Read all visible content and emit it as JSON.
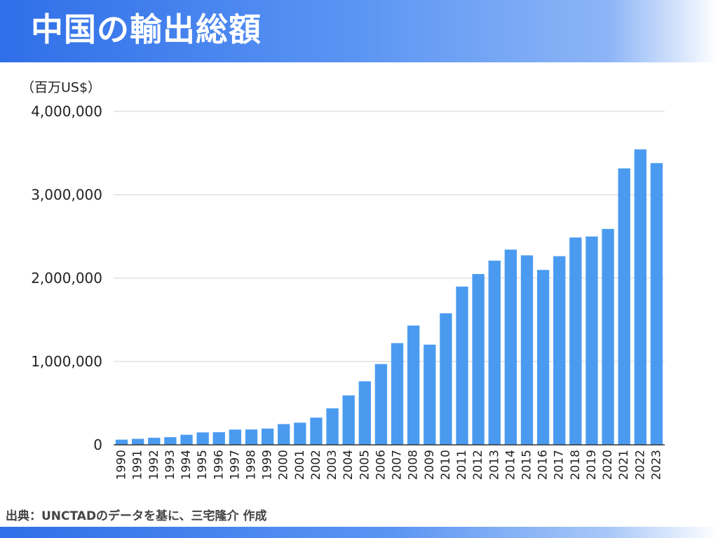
{
  "header": {
    "title": "中国の輸出総額"
  },
  "source": {
    "text": "出典：UNCTADのデータを基に、三宅隆介 作成"
  },
  "colors": {
    "bar": "#4a9bf0",
    "grid": "#d0d0d0",
    "axis": "#333333"
  },
  "chart_data": {
    "type": "bar",
    "unit_label": "（百万US$）",
    "categories": [
      "1990",
      "1991",
      "1992",
      "1993",
      "1994",
      "1995",
      "1996",
      "1997",
      "1998",
      "1999",
      "2000",
      "2001",
      "2002",
      "2003",
      "2004",
      "2005",
      "2006",
      "2007",
      "2008",
      "2009",
      "2010",
      "2011",
      "2012",
      "2013",
      "2014",
      "2015",
      "2016",
      "2017",
      "2018",
      "2019",
      "2020",
      "2021",
      "2022",
      "2023"
    ],
    "values": [
      62000,
      72000,
      85000,
      92000,
      121000,
      149000,
      151000,
      183000,
      184000,
      195000,
      249000,
      266000,
      326000,
      438000,
      593000,
      762000,
      969000,
      1220000,
      1431000,
      1202000,
      1578000,
      1898000,
      2049000,
      2209000,
      2342000,
      2273000,
      2098000,
      2263000,
      2487000,
      2499000,
      2590000,
      3316000,
      3544000,
      3380000
    ],
    "ylim": [
      0,
      4000000
    ],
    "yticks": [
      0,
      1000000,
      2000000,
      3000000,
      4000000
    ],
    "ytick_labels": [
      "0",
      "1,000,000",
      "2,000,000",
      "3,000,000",
      "4,000,000"
    ],
    "grid": true
  }
}
